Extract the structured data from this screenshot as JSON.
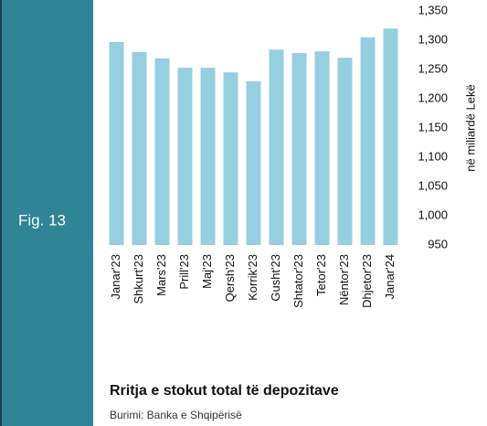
{
  "chart_data": {
    "type": "bar",
    "figure_label": "Fig. 13",
    "title": "Rritja e stokut total të depozitave",
    "source": "Burimi: Banka e Shqipërisë",
    "y_axis_label": "në miliardë Lekë",
    "categories": [
      "Janar'23",
      "Shkurt'23",
      "Mars'23",
      "Prill'23",
      "Maj'23",
      "Qersh'23",
      "Korrik'23",
      "Gusht'23",
      "Shtator'23",
      "Tetor'23",
      "Nëntor'23",
      "Dhjetor'23",
      "Janar'24"
    ],
    "values": [
      1297,
      1280,
      1269,
      1253,
      1253,
      1245,
      1230,
      1284,
      1278,
      1281,
      1270,
      1305,
      1320
    ],
    "color": "#96cfe0",
    "ylim": [
      950,
      1350
    ],
    "yticks": [
      950,
      {
        "value": 1000,
        "label": "1,000"
      },
      {
        "value": 1050,
        "label": "1,050"
      },
      {
        "value": 1100,
        "label": "1,100"
      },
      {
        "value": 1150,
        "label": "1,150"
      },
      {
        "value": 1200,
        "label": "1,200"
      },
      {
        "value": 1250,
        "label": "1,250"
      },
      {
        "value": 1300,
        "label": "1,300"
      },
      {
        "value": 1350,
        "label": "1,350"
      }
    ],
    "grid": false
  }
}
